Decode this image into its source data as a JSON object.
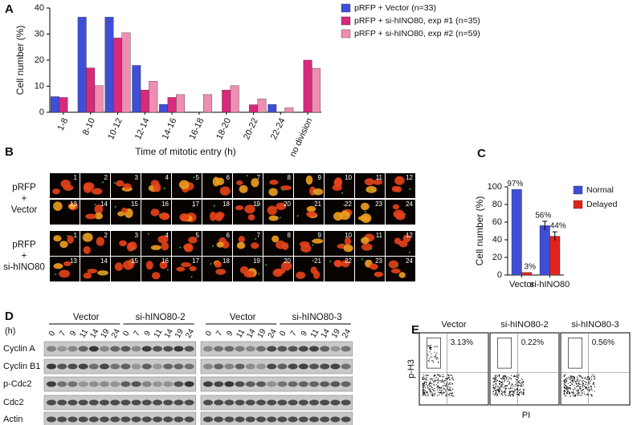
{
  "panel_labels": [
    "A",
    "B",
    "C",
    "D",
    "E"
  ],
  "chart_data": [
    {
      "type": "bar",
      "categories": [
        "1-8",
        "8-10",
        "10-12",
        "12-14",
        "14-16",
        "16-18",
        "18-20",
        "20-22",
        "22-24",
        "no division"
      ],
      "series": [
        {
          "name": "pRFP + Vector (n=33)",
          "color": "#3f4ed6",
          "values": [
            6,
            36.5,
            36.5,
            18,
            3,
            0,
            0,
            0,
            3,
            0
          ]
        },
        {
          "name": "pRFP + si-hINO80, exp #1 (n=35)",
          "color": "#d8297c",
          "values": [
            5.7,
            17,
            28.5,
            8.5,
            5.7,
            0,
            8.5,
            2.9,
            0,
            20
          ]
        },
        {
          "name": "pRFP + si-hINO80, exp #2 (n=59)",
          "color": "#f08db2",
          "values": [
            0,
            10.2,
            30.5,
            11.9,
            6.8,
            6.8,
            10.2,
            5.1,
            1.7,
            16.9
          ]
        }
      ],
      "xlabel": "Time of mitotic entry (h)",
      "ylabel": "Cell number (%)",
      "ylim": [
        0,
        40
      ],
      "yticks": [
        0,
        10,
        20,
        30,
        40
      ],
      "legend": "right"
    },
    {
      "type": "bar",
      "categories": [
        "Vector",
        "si-hINO80"
      ],
      "series": [
        {
          "name": "Normal",
          "color": "#3f4ed6",
          "values": [
            97,
            56
          ],
          "value_labels": [
            "97%",
            "56%"
          ],
          "errors": [
            null,
            5
          ]
        },
        {
          "name": "Delayed",
          "color": "#e0231c",
          "values": [
            3,
            44
          ],
          "value_labels": [
            "3%",
            "44%"
          ],
          "errors": [
            null,
            5
          ]
        }
      ],
      "ylabel": "Cell number (%)",
      "ylim": [
        0,
        100
      ],
      "yticks": [
        0,
        20,
        40,
        60,
        80,
        100
      ],
      "legend": "right"
    }
  ],
  "panel_b": {
    "conditions": [
      [
        "pRFP",
        "+",
        "Vector"
      ],
      [
        "pRFP",
        "+",
        "si-hINO80"
      ]
    ],
    "frame_numbers": [
      "1",
      "2",
      "3",
      "4",
      "5",
      "6",
      "7",
      "8",
      "9",
      "10",
      "11",
      "12",
      "13",
      "14",
      "15",
      "16",
      "17",
      "18",
      "19",
      "20",
      "21",
      "22",
      "23",
      "24"
    ]
  },
  "panel_d": {
    "time_unit_label": "(h)",
    "groups": [
      "Vector",
      "si-hINO80-2",
      "Vector",
      "si-hINO80-3"
    ],
    "times": [
      "0",
      "7",
      "9",
      "11",
      "14",
      "19",
      "24"
    ],
    "proteins": [
      "Cyclin A",
      "Cyclin B1",
      "p-Cdc2",
      "Cdc2",
      "Actin"
    ]
  },
  "panel_e": {
    "y_label": "p-H3",
    "x_label": "PI",
    "plots": [
      {
        "title": "Vector",
        "gate_label": "3.13%"
      },
      {
        "title": "si-hINO80-2",
        "gate_label": "0.22%"
      },
      {
        "title": "si-hINO80-3",
        "gate_label": "0.56%"
      }
    ]
  }
}
